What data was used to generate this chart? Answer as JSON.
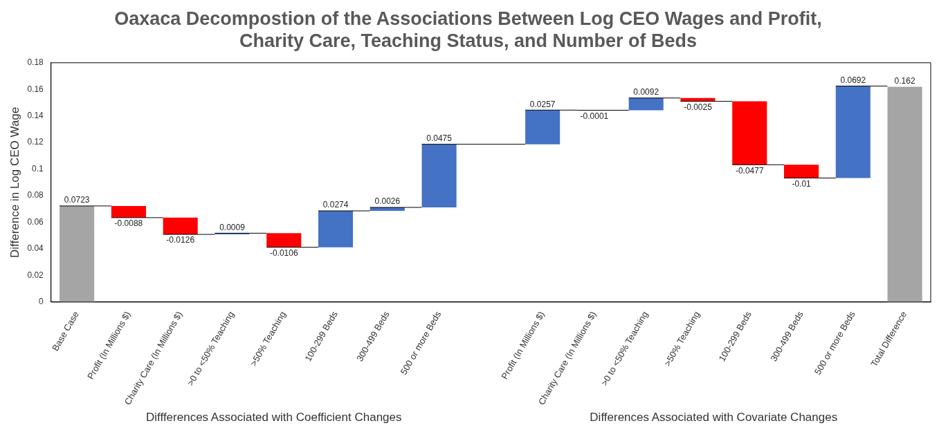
{
  "chart_data": {
    "type": "bar",
    "title": "Oaxaca Decompostion of the Associations Between Log CEO Wages and Profit, Charity Care, Teaching Status, and Number of Beds",
    "ylabel": "Difference in Log CEO Wage",
    "categories": [
      "Base Case",
      "Profit (In Millions $)",
      "Charity Care (In Millions $)",
      ">0 to <50% Teaching",
      ">50% Teaching",
      "100-299 Beds",
      "300-499 Beds",
      "500 or more Beds",
      null,
      "Profit (In Millions $)",
      "Charity Care (In Millions $)",
      ">0 to <50% Teaching",
      ">50% Teaching",
      "100-299 Beds",
      "300-499 Beds",
      "500 or more Beds",
      "Total Difference"
    ],
    "values": [
      0.0723,
      -0.0088,
      -0.0126,
      0.0009,
      -0.0106,
      0.0274,
      0.0026,
      0.0475,
      null,
      0.0257,
      -0.0001,
      0.0092,
      -0.0025,
      -0.0477,
      -0.01,
      0.0692,
      0.162
    ],
    "base": [
      0,
      0.0723,
      0.0635,
      0.0509,
      0.0518,
      0.0412,
      0.0686,
      0.0712,
      null,
      0.1187,
      0.1444,
      0.1443,
      0.1535,
      0.151,
      0.1033,
      0.0933,
      0
    ],
    "colors": [
      "#a5a5a5",
      "#ff0000",
      "#ff0000",
      "#4472c4",
      "#ff0000",
      "#4472c4",
      "#4472c4",
      "#4472c4",
      null,
      "#4472c4",
      "#ff0000",
      "#4472c4",
      "#ff0000",
      "#ff0000",
      "#ff0000",
      "#4472c4",
      "#a5a5a5"
    ],
    "data_labels": true,
    "ylim": [
      0,
      0.18
    ],
    "yticks": [
      0,
      0.02,
      0.04,
      0.06,
      0.08,
      0.1,
      0.12,
      0.14,
      0.16,
      0.18
    ],
    "grid": false,
    "legend": false,
    "annotations": [
      "Diffferences Associated with Coefficient Changes",
      "Differences Associated with Covariate Changes"
    ]
  }
}
